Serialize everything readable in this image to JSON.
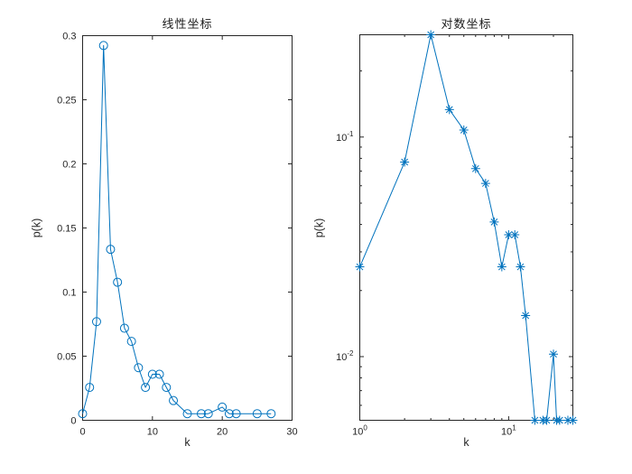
{
  "figure": {
    "background": "#ffffff",
    "accent_color": "#0072BD",
    "axis_color": "#262626",
    "text_color": "#262626"
  },
  "chart_data": [
    {
      "type": "line",
      "title": "线性坐标",
      "xlabel": "k",
      "ylabel": "p(k)",
      "xscale": "linear",
      "yscale": "linear",
      "xlim": [
        0,
        30
      ],
      "ylim": [
        0,
        0.3
      ],
      "xticks": [
        0,
        10,
        20,
        30
      ],
      "xtick_labels": [
        "0",
        "10",
        "20",
        "30"
      ],
      "yticks": [
        0,
        0.05,
        0.1,
        0.15,
        0.2,
        0.25,
        0.3
      ],
      "ytick_labels": [
        "0",
        "0.05",
        "0.1",
        "0.15",
        "0.2",
        "0.25",
        "0.3"
      ],
      "minor_xticks": [],
      "minor_yticks": [],
      "grid": false,
      "legend": null,
      "marker": "circle",
      "line_color": "#0072BD",
      "x": [
        0,
        1,
        2,
        3,
        4,
        5,
        6,
        7,
        8,
        9,
        10,
        11,
        12,
        13,
        15,
        17,
        18,
        20,
        21,
        22,
        25,
        27
      ],
      "y": [
        0.00513,
        0.02564,
        0.07692,
        0.29231,
        0.13333,
        0.10769,
        0.07179,
        0.06154,
        0.04103,
        0.02564,
        0.0359,
        0.0359,
        0.02564,
        0.01538,
        0.00513,
        0.00513,
        0.00513,
        0.01026,
        0.00513,
        0.00513,
        0.00513,
        0.00513
      ]
    },
    {
      "type": "line",
      "title": "对数坐标",
      "xlabel": "k",
      "ylabel": "p(k)",
      "xscale": "log",
      "yscale": "log",
      "xlim": [
        1,
        27
      ],
      "ylim": [
        0.00513,
        0.29231
      ],
      "xticks": [
        1,
        10
      ],
      "xtick_labels": [
        {
          "base": "10",
          "exp": "0"
        },
        {
          "base": "10",
          "exp": "1"
        }
      ],
      "yticks": [
        0.1,
        0.01
      ],
      "ytick_labels": [
        {
          "base": "10",
          "exp": "-1"
        },
        {
          "base": "10",
          "exp": "-2"
        }
      ],
      "minor_xticks": [
        2,
        3,
        4,
        5,
        6,
        7,
        8,
        9,
        20
      ],
      "minor_yticks": [
        0.006,
        0.007,
        0.008,
        0.009,
        0.02,
        0.03,
        0.04,
        0.05,
        0.06,
        0.07,
        0.08,
        0.09,
        0.2
      ],
      "grid": false,
      "legend": null,
      "marker": "asterisk",
      "line_color": "#0072BD",
      "x": [
        1,
        2,
        3,
        4,
        5,
        6,
        7,
        8,
        9,
        10,
        11,
        12,
        13,
        15,
        17,
        18,
        20,
        21,
        22,
        25,
        27
      ],
      "y": [
        0.02564,
        0.07692,
        0.29231,
        0.13333,
        0.10769,
        0.07179,
        0.06154,
        0.04103,
        0.02564,
        0.0359,
        0.0359,
        0.02564,
        0.01538,
        0.00513,
        0.00513,
        0.00513,
        0.01026,
        0.00513,
        0.00513,
        0.00513,
        0.00513
      ]
    }
  ]
}
